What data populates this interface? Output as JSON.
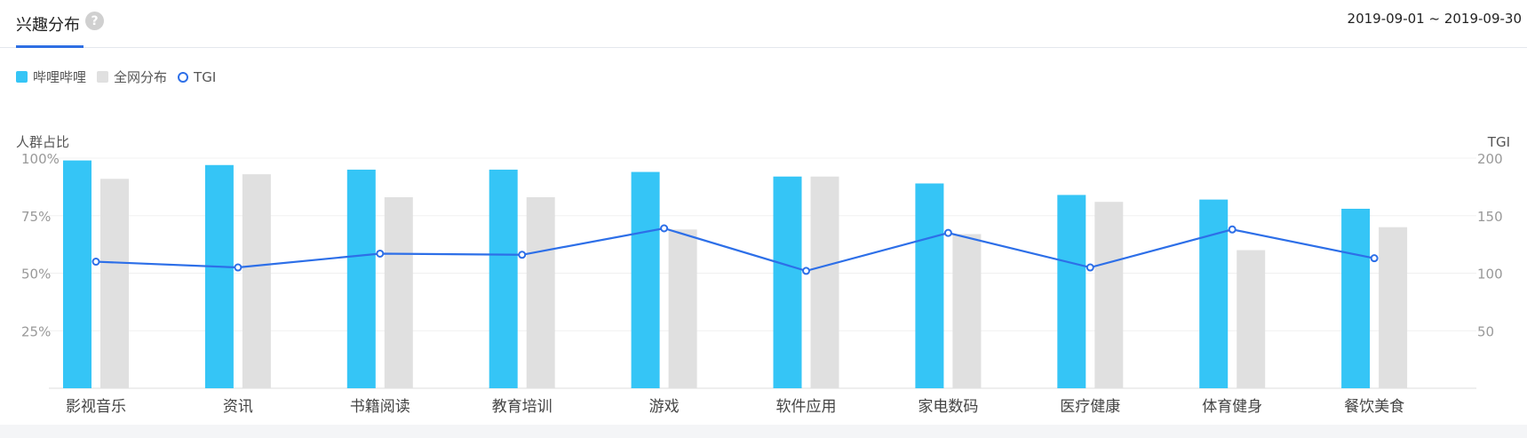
{
  "header": {
    "title": "兴趣分布",
    "help_icon": "question-mark-icon",
    "date_range": "2019-09-01 ~ 2019-09-30"
  },
  "colors": {
    "bilibili": "#35c5f6",
    "all": "#e0e0e0",
    "tgi": "#2d6fe8",
    "accent": "#2f6fe3"
  },
  "chart_data": {
    "type": "bar",
    "categories": [
      "影视音乐",
      "资讯",
      "书籍阅读",
      "教育培训",
      "游戏",
      "软件应用",
      "家电数码",
      "医疗健康",
      "体育健身",
      "餐饮美食"
    ],
    "series": [
      {
        "name": "哔哩哔哩",
        "type": "bar",
        "axis": "left",
        "values": [
          99,
          97,
          95,
          95,
          94,
          92,
          89,
          84,
          82,
          78
        ]
      },
      {
        "name": "全网分布",
        "type": "bar",
        "axis": "left",
        "values": [
          91,
          93,
          83,
          83,
          69,
          92,
          67,
          81,
          60,
          70
        ]
      },
      {
        "name": "TGI",
        "type": "line",
        "axis": "right",
        "values": [
          110,
          105,
          117,
          116,
          139,
          102,
          135,
          105,
          138,
          113
        ]
      }
    ],
    "ylabel_left": "人群占比",
    "ylabel_right": "TGI",
    "ylim_left": [
      0,
      100
    ],
    "ylim_right": [
      0,
      200
    ],
    "yticks_left": [
      "25%",
      "50%",
      "75%",
      "100%"
    ],
    "yticks_right": [
      "50",
      "100",
      "150",
      "200"
    ],
    "grid": true,
    "legend": "top-left"
  }
}
